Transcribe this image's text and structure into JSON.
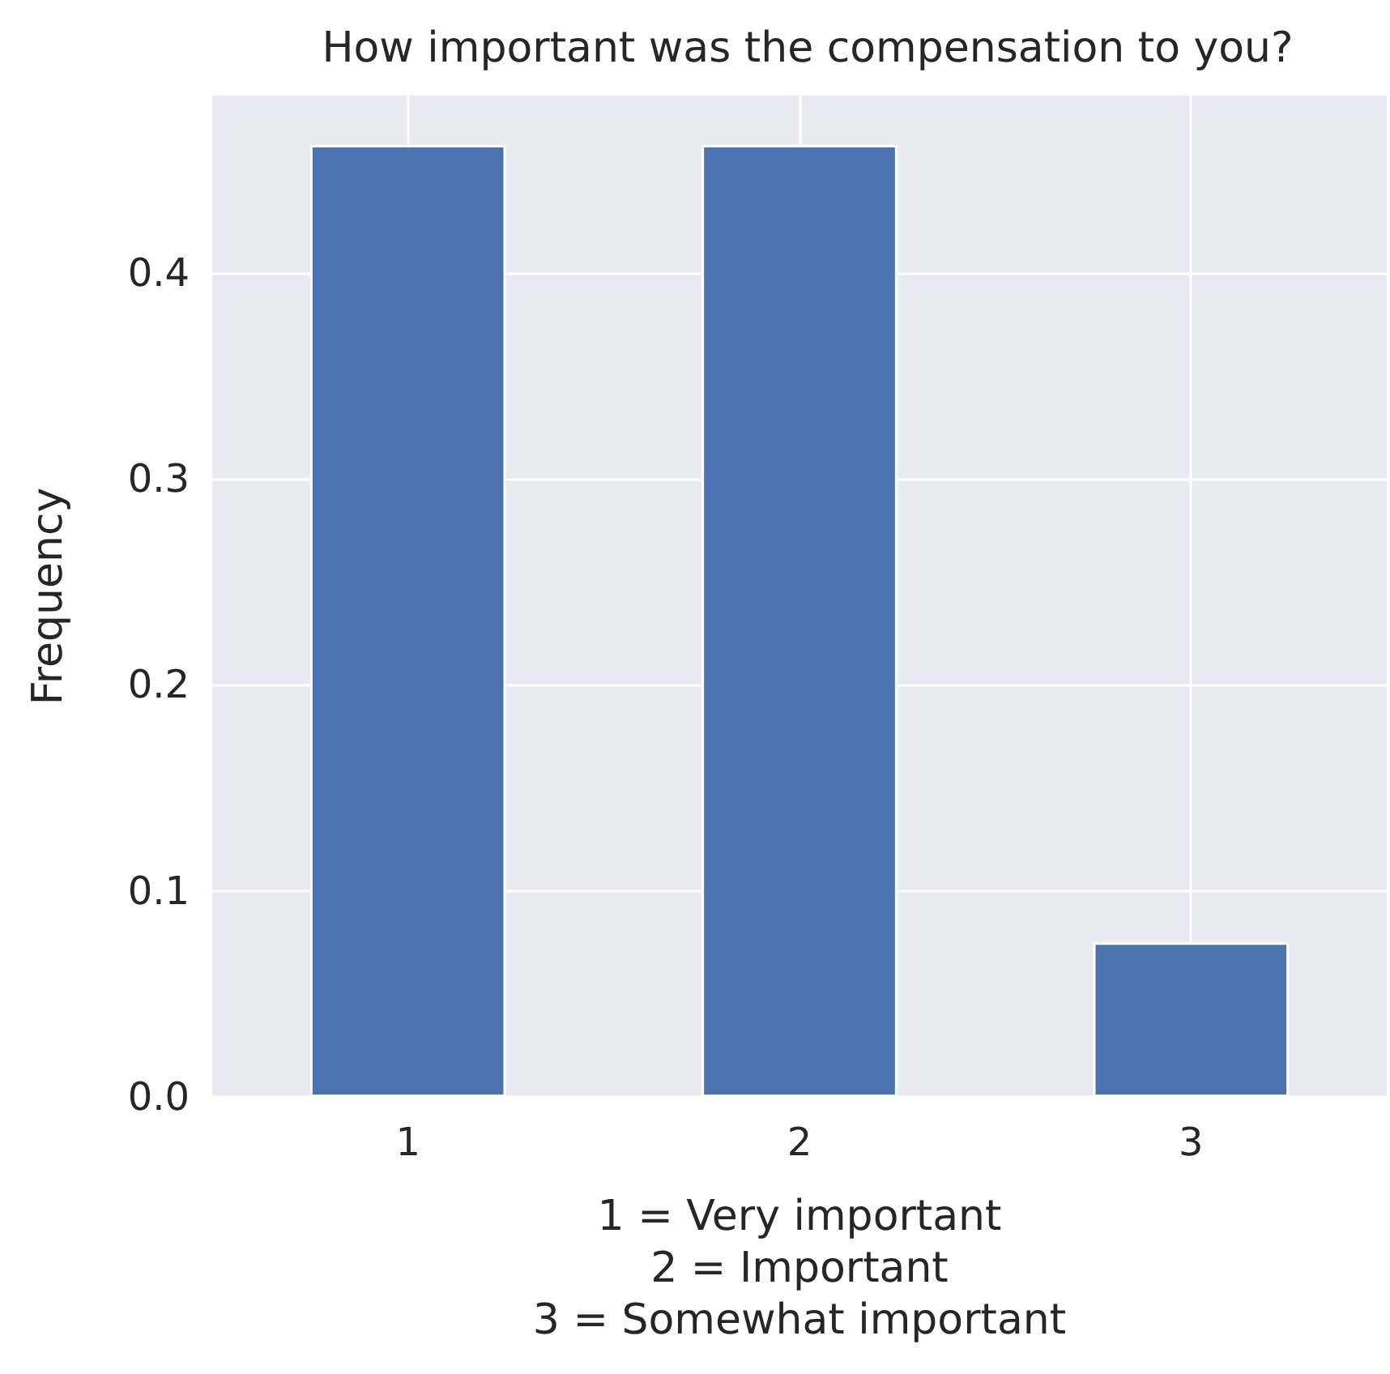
{
  "chart_data": {
    "type": "bar",
    "title": "How important was the compensation to you?",
    "xlabel": "1 = Very important\n2 = Important\n3 = Somewhat important",
    "ylabel": "Frequency",
    "categories": [
      "1",
      "2",
      "3"
    ],
    "values": [
      0.462,
      0.462,
      0.075
    ],
    "color": "#4c72b0",
    "ylim": [
      0,
      0.486
    ],
    "yticks": [
      {
        "value": 0,
        "label": "0.0"
      },
      {
        "value": 0.1,
        "label": "0.1"
      },
      {
        "value": 0.2,
        "label": "0.2"
      },
      {
        "value": 0.3,
        "label": "0.3"
      },
      {
        "value": 0.4,
        "label": "0.4"
      }
    ],
    "grid": true
  }
}
